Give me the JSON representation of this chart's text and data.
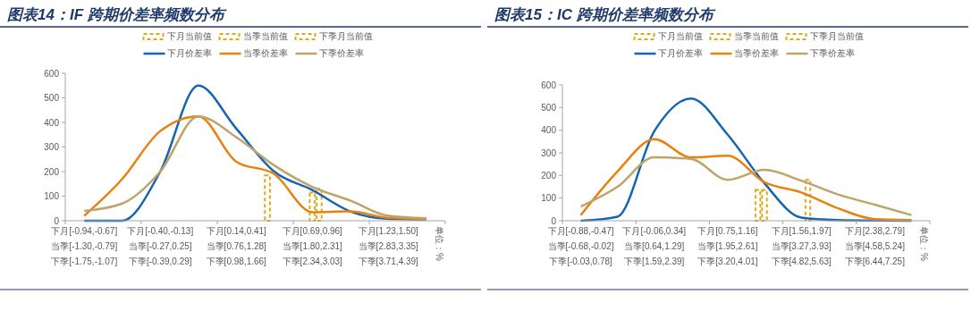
{
  "chart_data": [
    {
      "type": "line",
      "title": "图表14：IF 跨期价差率频数分布",
      "annotations": [
        "单位：%"
      ],
      "legend": "top",
      "categories": [
        "下月[-0.94,-0.67]\n当季[-1.30,-0.79]\n下季[-1.75,-1.07]",
        null,
        "下月[-0.40,-0.13]\n当季[-0.27,0.25]\n下季[-0.39,0.29]",
        null,
        "下月[0.14,0.41]\n当季[0.76,1.28]\n下季[0.98,1.66]",
        null,
        "下月[0.69,0.96]\n当季[1.80,2.31]\n下季[2.34,3.03]",
        null,
        "下月[1.23,1.50]\n当季[2.83,3.35]\n下季[3.71,4.39]",
        null
      ],
      "ylim": [
        0,
        600
      ],
      "yticks": [
        0,
        100,
        200,
        300,
        400,
        500,
        600
      ],
      "series": [
        {
          "name": "下月当前值",
          "type": "bar",
          "line_style": "dashed",
          "color": "#e0aa12",
          "values": [
            null,
            null,
            null,
            null,
            null,
            185,
            null,
            null,
            null,
            null
          ]
        },
        {
          "name": "当季当前值",
          "type": "bar",
          "line_style": "dashed",
          "color": "#e0aa12",
          "values": [
            null,
            null,
            null,
            null,
            null,
            null,
            115,
            null,
            null,
            null
          ]
        },
        {
          "name": "下季月当前值",
          "type": "bar",
          "line_style": "dashed",
          "color": "#e0aa12",
          "values": [
            null,
            null,
            null,
            null,
            null,
            null,
            130,
            null,
            null,
            null
          ]
        },
        {
          "name": "下月价差率",
          "color": "#1565b0",
          "values": [
            0,
            0,
            200,
            550,
            375,
            200,
            125,
            38,
            8,
            5
          ]
        },
        {
          "name": "当季价差率",
          "color": "#e8820c",
          "values": [
            20,
            170,
            365,
            425,
            240,
            190,
            35,
            38,
            12,
            8
          ]
        },
        {
          "name": "下季价差率",
          "color": "#bfa36a",
          "values": [
            40,
            70,
            200,
            425,
            340,
            225,
            138,
            82,
            20,
            10
          ]
        }
      ]
    },
    {
      "type": "line",
      "title": "图表15：IC 跨期价差率频数分布",
      "annotations": [
        "单位：%"
      ],
      "legend": "top",
      "categories": [
        "下月[-0.88,-0.47]\n当季[-0.68,-0.02]\n下季[-0.03,0.78]",
        null,
        "下月[-0.06,0.34]\n当季[0.64,1.29]\n下季[1.59,2.39]",
        null,
        "下月[0.75,1.16]\n当季[1.95,2.61]\n下季[3.20,4.01]",
        null,
        "下月[1.56,1.97]\n当季[3.27,3.93]\n下季[4.82,5.63]",
        null,
        "下月[2.38,2.79]\n当季[4.58,5.24]\n下季[6.44,7.25]",
        null
      ],
      "ylim": [
        0,
        600
      ],
      "yticks": [
        0,
        100,
        200,
        300,
        400,
        500,
        600
      ],
      "series": [
        {
          "name": "下月当前值",
          "type": "bar",
          "line_style": "dashed",
          "color": "#e0aa12",
          "values": [
            null,
            null,
            null,
            null,
            null,
            136,
            null,
            null,
            null,
            null
          ]
        },
        {
          "name": "当季当前值",
          "type": "bar",
          "line_style": "dashed",
          "color": "#e0aa12",
          "values": [
            null,
            null,
            null,
            null,
            null,
            136,
            null,
            null,
            null,
            null
          ]
        },
        {
          "name": "下季月当前值",
          "type": "bar",
          "line_style": "dashed",
          "color": "#e0aa12",
          "values": [
            null,
            null,
            null,
            null,
            null,
            null,
            181,
            null,
            null,
            null
          ]
        },
        {
          "name": "下月价差率",
          "color": "#1565b0",
          "values": [
            0,
            18,
            395,
            540,
            380,
            165,
            14,
            3,
            1,
            0
          ]
        },
        {
          "name": "当季价差率",
          "color": "#e8820c",
          "values": [
            25,
            218,
            360,
            280,
            287,
            170,
            125,
            55,
            7,
            3
          ]
        },
        {
          "name": "下季价差率",
          "color": "#bfa36a",
          "values": [
            63,
            150,
            280,
            273,
            181,
            225,
            177,
            116,
            71,
            25
          ]
        }
      ]
    }
  ]
}
